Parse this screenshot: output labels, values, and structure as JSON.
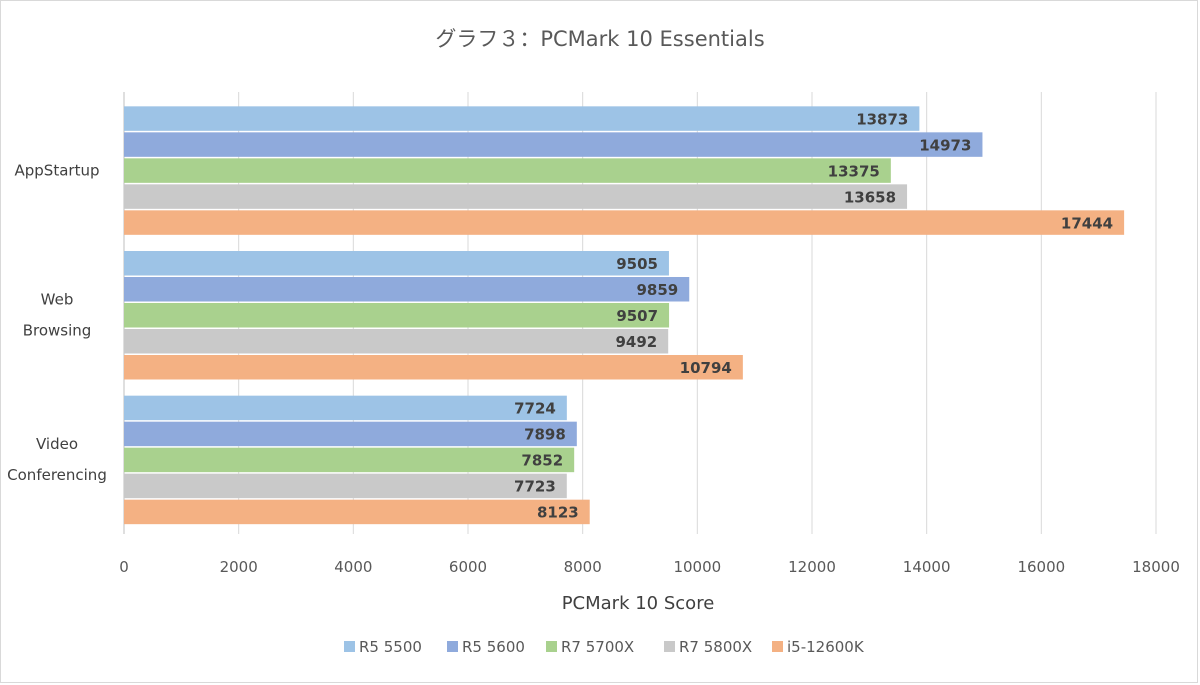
{
  "chart_data": {
    "type": "bar",
    "orientation": "horizontal",
    "title": "グラフ３：PCMark 10 Essentials",
    "xlabel": "PCMark 10 Score",
    "ylabel": "",
    "xlim": [
      0,
      18000
    ],
    "x_ticks": [
      0,
      2000,
      4000,
      6000,
      8000,
      10000,
      12000,
      14000,
      16000,
      18000
    ],
    "grid": "vertical",
    "legend_position": "bottom",
    "categories": [
      [
        "AppStartup"
      ],
      [
        "Web",
        "Browsing"
      ],
      [
        "Video",
        "Conferencing"
      ]
    ],
    "series": [
      {
        "name": "R5 5500",
        "color": "#9dc3e6",
        "values": [
          13873,
          9505,
          7724
        ]
      },
      {
        "name": "R5 5600",
        "color": "#8faadc",
        "values": [
          14973,
          9859,
          7898
        ]
      },
      {
        "name": "R7 5700X",
        "color": "#a9d18e",
        "values": [
          13375,
          9507,
          7852
        ]
      },
      {
        "name": "R7 5800X",
        "color": "#c9c9c9",
        "values": [
          13658,
          9492,
          7723
        ]
      },
      {
        "name": "i5-12600K",
        "color": "#f4b183",
        "values": [
          17444,
          10794,
          8123
        ]
      }
    ]
  }
}
